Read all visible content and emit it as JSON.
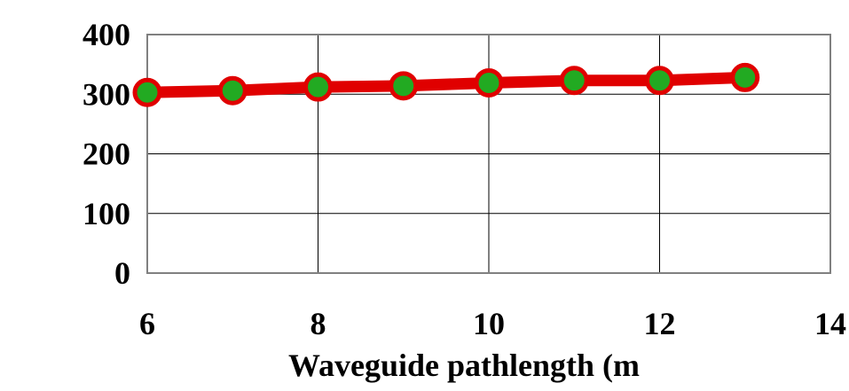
{
  "chart_data": {
    "type": "line",
    "title": "",
    "xlabel": "Waveguide pathlength (m",
    "ylabel": "",
    "xlim": [
      6,
      14
    ],
    "ylim": [
      0,
      400
    ],
    "x_ticks": [
      6,
      8,
      10,
      12,
      14
    ],
    "y_ticks": [
      0,
      100,
      200,
      300,
      400
    ],
    "x_tick_labels": [
      "6",
      "8",
      "10",
      "12",
      "14"
    ],
    "y_tick_labels": [
      "0",
      "100",
      "200",
      "300",
      "400"
    ],
    "grid": true,
    "legend": "none",
    "series": [
      {
        "x": [
          6,
          7,
          8,
          9,
          10,
          11,
          12,
          13
        ],
        "y": [
          303,
          306,
          312,
          314,
          319,
          323,
          323,
          328
        ],
        "line_color": "#e00000",
        "marker_fill": "#22aa22",
        "marker_edge": "#e00000"
      }
    ]
  }
}
